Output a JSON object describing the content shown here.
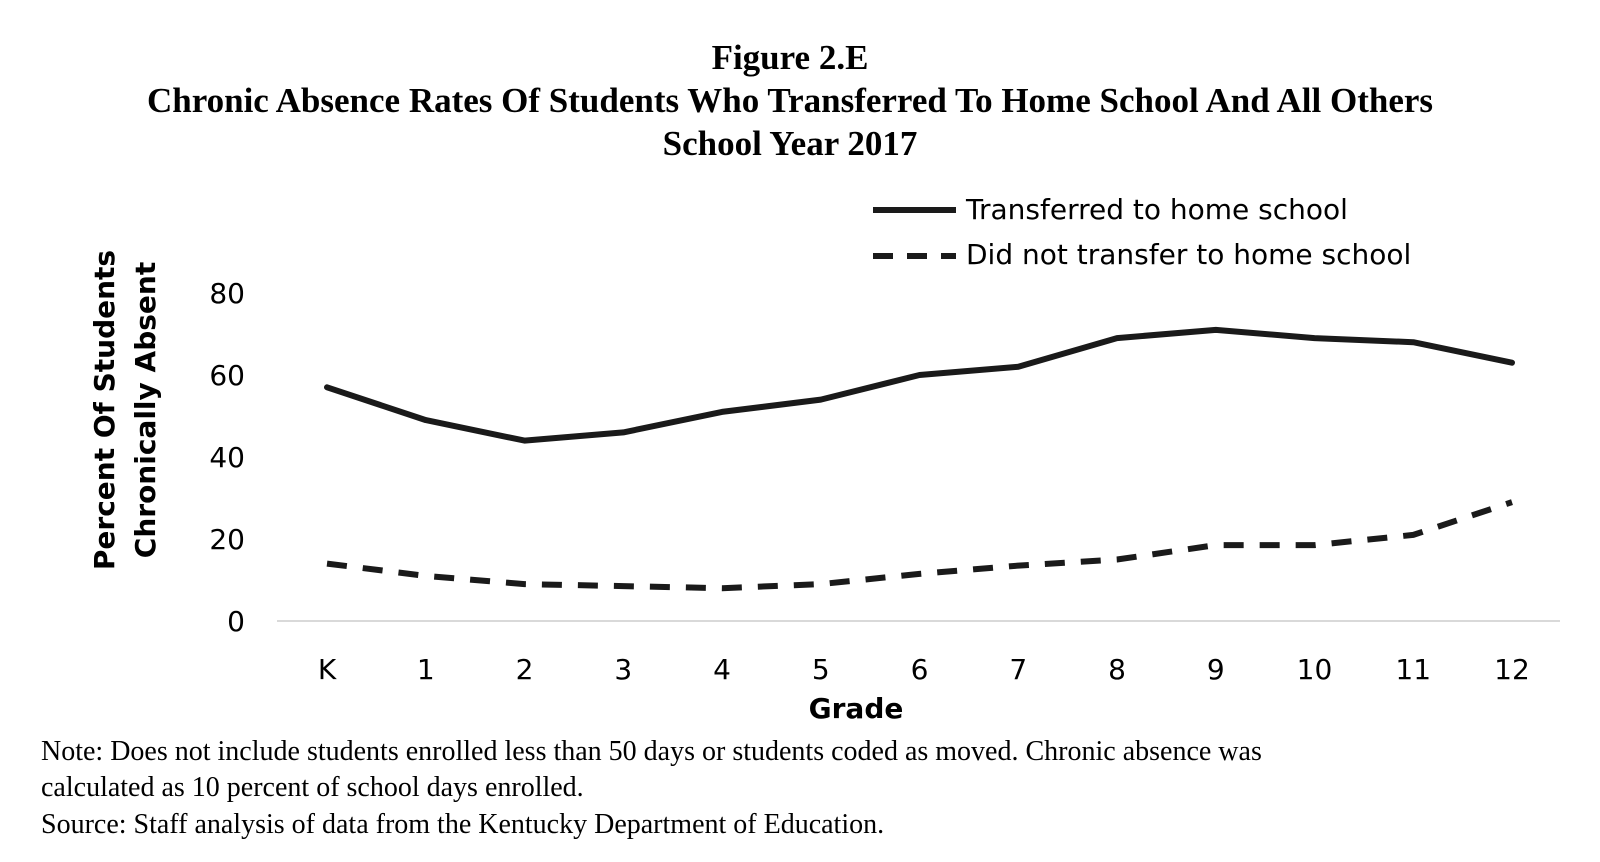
{
  "figure": {
    "number": "Figure 2.E",
    "title": "Chronic Absence Rates Of Students Who Transferred To Home School And All Others",
    "subtitle": "School Year 2017"
  },
  "notes": {
    "line1": "Note: Does not include students enrolled less than 50 days or students coded as moved. Chronic absence was",
    "line2": "calculated as 10 percent of school days enrolled.",
    "source": "Source: Staff analysis of data from the Kentucky Department of Education."
  },
  "chart_data": {
    "type": "line",
    "categories": [
      "K",
      "1",
      "2",
      "3",
      "4",
      "5",
      "6",
      "7",
      "8",
      "9",
      "10",
      "11",
      "12"
    ],
    "series": [
      {
        "name": "Transferred to home school",
        "style": "solid",
        "values": [
          57,
          49,
          44,
          46,
          51,
          54,
          60,
          62,
          69,
          71,
          69,
          68,
          63
        ]
      },
      {
        "name": "Did not transfer to home school",
        "style": "dashed",
        "values": [
          14,
          11,
          9,
          8.5,
          8,
          9,
          11.5,
          13.5,
          15,
          18.5,
          18.5,
          21,
          29
        ]
      }
    ],
    "xlabel": "Grade",
    "ylabel_lines": [
      "Percent Of Students",
      "Chronically Absent"
    ],
    "yticks": [
      0,
      20,
      40,
      60,
      80
    ],
    "ylim": [
      0,
      80
    ],
    "grid": false,
    "legend_position": "top-right",
    "line_color": "#1a1a1a",
    "axis_color": "#d9d9d9"
  }
}
